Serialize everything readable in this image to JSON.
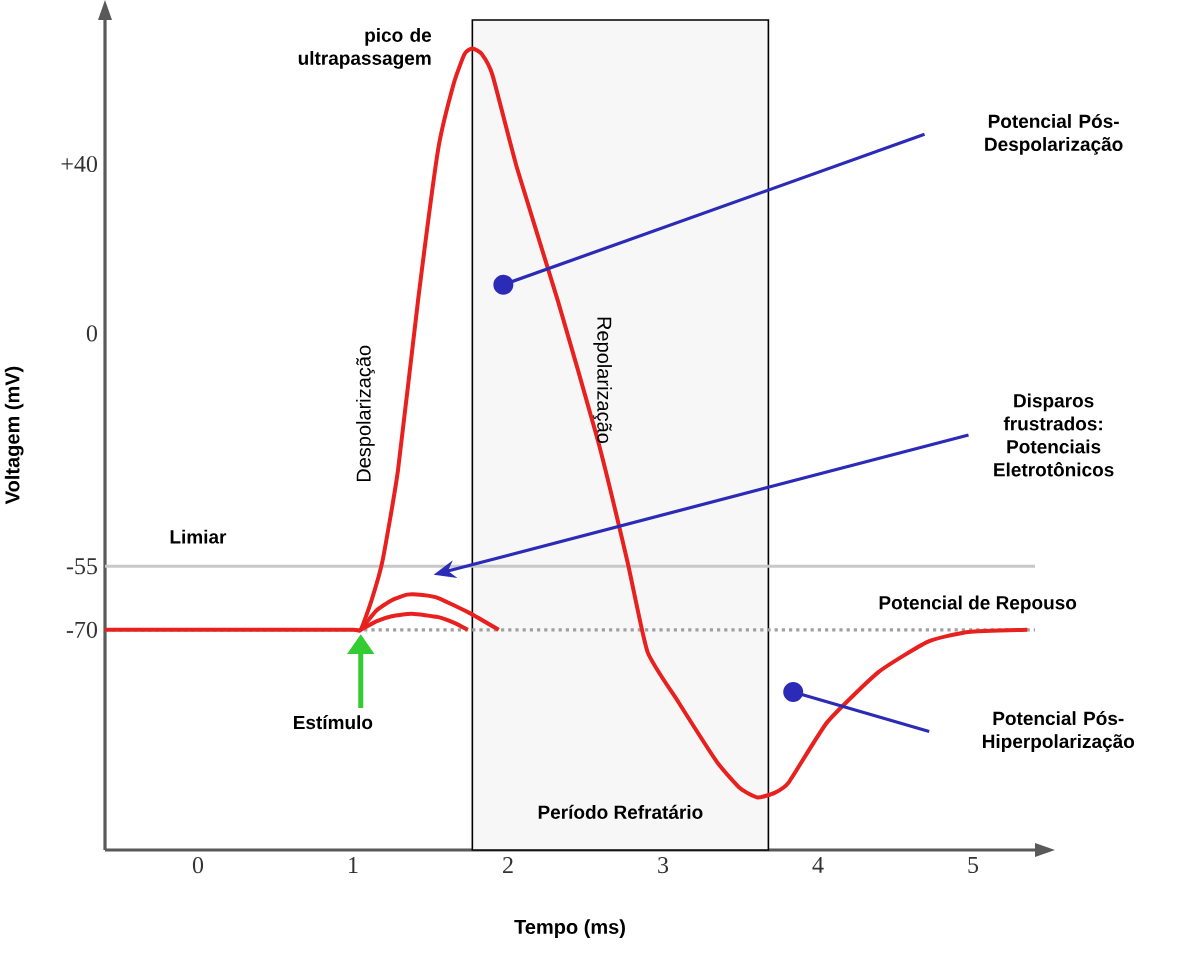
{
  "chart_data": {
    "type": "line",
    "xlabel": "Tempo (ms)",
    "ylabel": "Voltagem (mV)",
    "xlim": [
      -0.6,
      5.4
    ],
    "ylim": [
      -122,
      74
    ],
    "xticks": [
      0,
      1,
      2,
      3,
      4,
      5
    ],
    "yticks": [
      {
        "value": 40,
        "label": "+40"
      },
      0,
      -55,
      -70
    ],
    "series": [
      {
        "color": "#e8201e",
        "x": [
          -0.6,
          0.5,
          1.0,
          1.05,
          1.12,
          1.19,
          1.29,
          1.42,
          1.55,
          1.65,
          1.72,
          1.77,
          1.83,
          1.9,
          2.06,
          2.32,
          2.58,
          2.77,
          2.9,
          3.1,
          3.35,
          3.5,
          3.61,
          3.72,
          3.81,
          4.06,
          4.39,
          4.71,
          4.97,
          5.35
        ],
        "values": [
          -70,
          -70,
          -70,
          -70,
          -63,
          -53.8,
          -32.4,
          7.9,
          43.6,
          59,
          66,
          67.3,
          66,
          61,
          38.8,
          7.9,
          -25.3,
          -53.8,
          -75.2,
          -87.1,
          -101.3,
          -107.5,
          -109.6,
          -108.5,
          -106.1,
          -91.8,
          -80,
          -72.8,
          -70.5,
          -70
        ]
      },
      {
        "color": "#e8201e",
        "x": [
          1.05,
          1.15,
          1.25,
          1.35,
          1.45,
          1.55,
          1.75,
          1.94
        ],
        "values": [
          -70,
          -65.5,
          -63,
          -61.7,
          -61.8,
          -62.5,
          -66,
          -70
        ]
      },
      {
        "color": "#e8201e",
        "x": [
          1.05,
          1.15,
          1.25,
          1.38,
          1.55,
          1.65,
          1.74
        ],
        "values": [
          -70,
          -68,
          -66.8,
          -66.2,
          -67,
          -68.3,
          -70
        ]
      }
    ],
    "ref_lines": [
      {
        "axis": "y",
        "value": -55,
        "label": "Limiar",
        "color": "#c8c8c8",
        "line_style": "solid"
      },
      {
        "axis": "y",
        "value": -70,
        "label": "Potencial de Repouso",
        "color": "#a0a0a0",
        "line_style": "dotted"
      }
    ],
    "bands": [
      {
        "axis": "x",
        "from": 1.77,
        "to": 3.68,
        "label": "Período Refratário",
        "color": "#f7f7f7"
      }
    ],
    "annotations": [
      {
        "text": "pico de ultrapassagem",
        "x": 1.76,
        "y": 67.3
      },
      "Despolarização",
      "Repolarização",
      "Potencial Pós-Despolarização",
      "Disparos frustrados: Potenciais Eletrotônicos",
      "Potencial Pós-Hiperpolarização",
      "Estímulo"
    ]
  }
}
